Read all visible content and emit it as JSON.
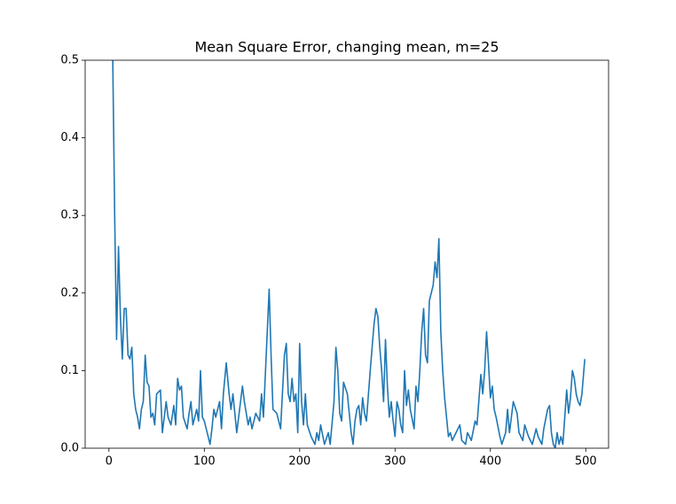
{
  "chart_data": {
    "type": "line",
    "title": "Mean Square Error, changing mean, m=25",
    "x": [
      4,
      6,
      8,
      10,
      12,
      14,
      16,
      18,
      20,
      22,
      24,
      26,
      28,
      30,
      32,
      34,
      36,
      38,
      40,
      42,
      44,
      46,
      48,
      50,
      54,
      56,
      60,
      62,
      65,
      68,
      70,
      72,
      74,
      76,
      78,
      82,
      84,
      86,
      88,
      92,
      94,
      96,
      98,
      100,
      104,
      106,
      108,
      110,
      112,
      116,
      118,
      120,
      123,
      126,
      128,
      130,
      134,
      136,
      140,
      142,
      146,
      148,
      150,
      154,
      158,
      160,
      162,
      166,
      168,
      170,
      172,
      176,
      180,
      184,
      186,
      188,
      190,
      192,
      194,
      196,
      198,
      200,
      202,
      204,
      206,
      208,
      212,
      216,
      218,
      220,
      222,
      226,
      230,
      232,
      236,
      238,
      240,
      242,
      244,
      246,
      250,
      254,
      256,
      258,
      260,
      262,
      264,
      266,
      268,
      270,
      274,
      278,
      280,
      282,
      284,
      286,
      288,
      290,
      292,
      294,
      296,
      298,
      300,
      302,
      304,
      306,
      308,
      310,
      312,
      314,
      316,
      320,
      322,
      324,
      326,
      328,
      330,
      332,
      334,
      336,
      338,
      340,
      342,
      344,
      346,
      348,
      350,
      352,
      354,
      356,
      358,
      360,
      364,
      368,
      370,
      374,
      376,
      380,
      384,
      386,
      390,
      392,
      394,
      396,
      398,
      400,
      402,
      404,
      406,
      410,
      412,
      416,
      418,
      420,
      424,
      428,
      430,
      434,
      436,
      440,
      444,
      448,
      450,
      454,
      456,
      460,
      462,
      464,
      466,
      468,
      470,
      472,
      474,
      476,
      478,
      480,
      482,
      484,
      486,
      488,
      490,
      492,
      494,
      496,
      499
    ],
    "values": [
      0.5,
      0.3,
      0.14,
      0.26,
      0.17,
      0.115,
      0.18,
      0.18,
      0.12,
      0.115,
      0.13,
      0.07,
      0.05,
      0.04,
      0.025,
      0.05,
      0.06,
      0.12,
      0.085,
      0.08,
      0.04,
      0.045,
      0.03,
      0.07,
      0.075,
      0.02,
      0.06,
      0.04,
      0.03,
      0.055,
      0.03,
      0.09,
      0.075,
      0.08,
      0.04,
      0.025,
      0.045,
      0.06,
      0.03,
      0.05,
      0.035,
      0.1,
      0.04,
      0.035,
      0.015,
      0.005,
      0.025,
      0.05,
      0.04,
      0.06,
      0.025,
      0.07,
      0.11,
      0.07,
      0.05,
      0.07,
      0.02,
      0.04,
      0.08,
      0.06,
      0.03,
      0.04,
      0.025,
      0.045,
      0.035,
      0.07,
      0.04,
      0.15,
      0.205,
      0.12,
      0.05,
      0.045,
      0.025,
      0.12,
      0.135,
      0.07,
      0.06,
      0.09,
      0.06,
      0.07,
      0.02,
      0.135,
      0.06,
      0.03,
      0.07,
      0.03,
      0.015,
      0.005,
      0.02,
      0.01,
      0.03,
      0.005,
      0.02,
      0.005,
      0.06,
      0.13,
      0.1,
      0.045,
      0.035,
      0.085,
      0.07,
      0.02,
      0.005,
      0.035,
      0.05,
      0.055,
      0.03,
      0.065,
      0.045,
      0.035,
      0.1,
      0.16,
      0.18,
      0.17,
      0.13,
      0.1,
      0.06,
      0.14,
      0.08,
      0.04,
      0.06,
      0.035,
      0.015,
      0.06,
      0.05,
      0.03,
      0.02,
      0.1,
      0.055,
      0.075,
      0.05,
      0.025,
      0.08,
      0.06,
      0.1,
      0.15,
      0.18,
      0.12,
      0.11,
      0.19,
      0.2,
      0.21,
      0.24,
      0.22,
      0.27,
      0.15,
      0.1,
      0.065,
      0.04,
      0.015,
      0.02,
      0.01,
      0.02,
      0.03,
      0.01,
      0.005,
      0.02,
      0.01,
      0.035,
      0.03,
      0.095,
      0.07,
      0.1,
      0.15,
      0.11,
      0.065,
      0.08,
      0.05,
      0.04,
      0.015,
      0.005,
      0.02,
      0.05,
      0.02,
      0.06,
      0.045,
      0.02,
      0.01,
      0.03,
      0.015,
      0.005,
      0.025,
      0.015,
      0.005,
      0.025,
      0.05,
      0.055,
      0.02,
      0.005,
      0,
      0.02,
      0.005,
      0.015,
      0.005,
      0.04,
      0.075,
      0.045,
      0.065,
      0.1,
      0.09,
      0.07,
      0.06,
      0.055,
      0.07,
      0.115
    ],
    "color": "#1f77b4",
    "xlim": [
      -24.95,
      523.95
    ],
    "xticks": [
      0,
      100,
      200,
      300,
      400,
      500
    ],
    "ylim": [
      0,
      0.5
    ],
    "yticks": [
      {
        "value": 0,
        "label": "0.0"
      },
      0.1,
      0.2,
      0.3,
      0.4,
      0.5
    ]
  }
}
